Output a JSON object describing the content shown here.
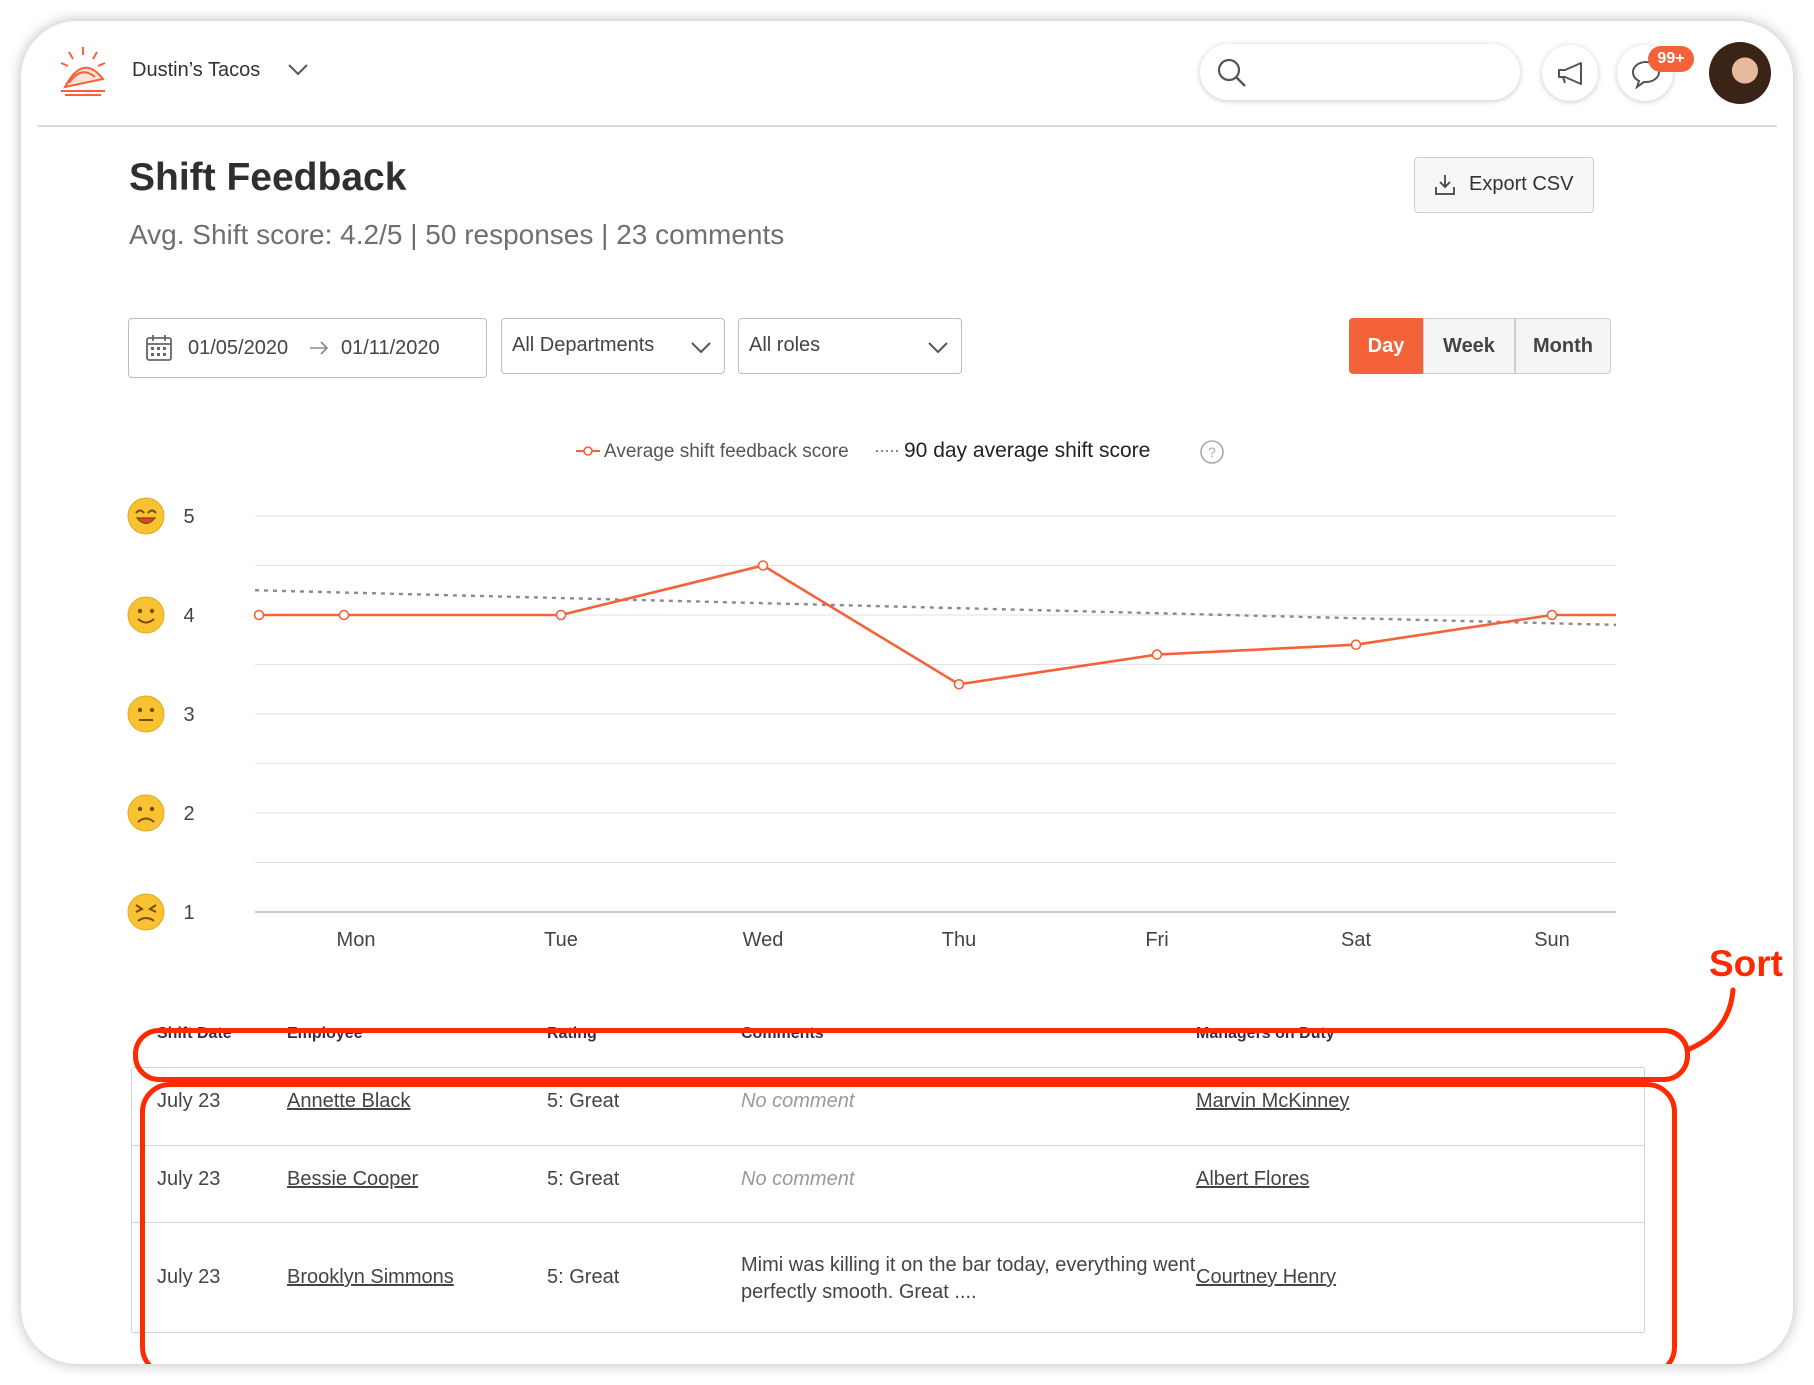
{
  "header": {
    "org_name": "Dustin’s Tacos",
    "notification_badge": "99+"
  },
  "page": {
    "title": "Shift Feedback",
    "summary": {
      "score": "Avg. Shift score: 4.2/5",
      "responses": "50 responses",
      "comments": "23 comments"
    },
    "export_label": "Export CSV"
  },
  "filters": {
    "date_start": "01/05/2020",
    "date_end": "01/11/2020",
    "department": "All Departments",
    "role": "All roles",
    "granularity": [
      "Day",
      "Week",
      "Month"
    ],
    "active_granularity": "Day"
  },
  "chart_data": {
    "type": "line",
    "legend": [
      "Average shift feedback score",
      "90 day average shift score"
    ],
    "x": [
      "Mon",
      "Tue",
      "Wed",
      "Thu",
      "Fri",
      "Sat",
      "Sun"
    ],
    "y_ticks": [
      5,
      4,
      3,
      2,
      1
    ],
    "ylim": [
      1,
      5
    ],
    "series": [
      {
        "name": "Average shift feedback score",
        "color": "#f4623a",
        "points": [
          {
            "x": "Mon",
            "y": 4.0
          },
          {
            "x": "Tue",
            "y": 4.0
          },
          {
            "x": "Wed",
            "y": 4.5
          },
          {
            "x": "Thu",
            "y": 3.3
          },
          {
            "x": "Fri",
            "y": 3.6
          },
          {
            "x": "Sat",
            "y": 3.7
          },
          {
            "x": "Sun",
            "y": 4.0
          }
        ]
      },
      {
        "name": "90 day average shift score",
        "color": "#8a8a8a",
        "points": [
          {
            "x": "Mon",
            "y": 4.25
          },
          {
            "x": "Sun",
            "y": 3.9
          }
        ]
      }
    ],
    "grid": true
  },
  "table": {
    "columns": [
      "Shift Date",
      "Employee",
      "Rating",
      "Comments",
      "Managers on Duty"
    ],
    "rows": [
      {
        "date": "July 23",
        "employee": "Annette Black",
        "rating": "5: Great",
        "comment": "No comment",
        "manager": "Marvin McKinney"
      },
      {
        "date": "July 23",
        "employee": "Bessie Cooper",
        "rating": "5: Great",
        "comment": "No comment",
        "manager": "Albert Flores"
      },
      {
        "date": "July 23",
        "employee": "Brooklyn Simmons",
        "rating": "5: Great",
        "comment": "Mimi was killing it on the bar today, everything went perfectly smooth. Great ....",
        "manager": "Courtney Henry"
      }
    ]
  },
  "annotation": {
    "label": "Sort",
    "color": "#ff2a00"
  }
}
